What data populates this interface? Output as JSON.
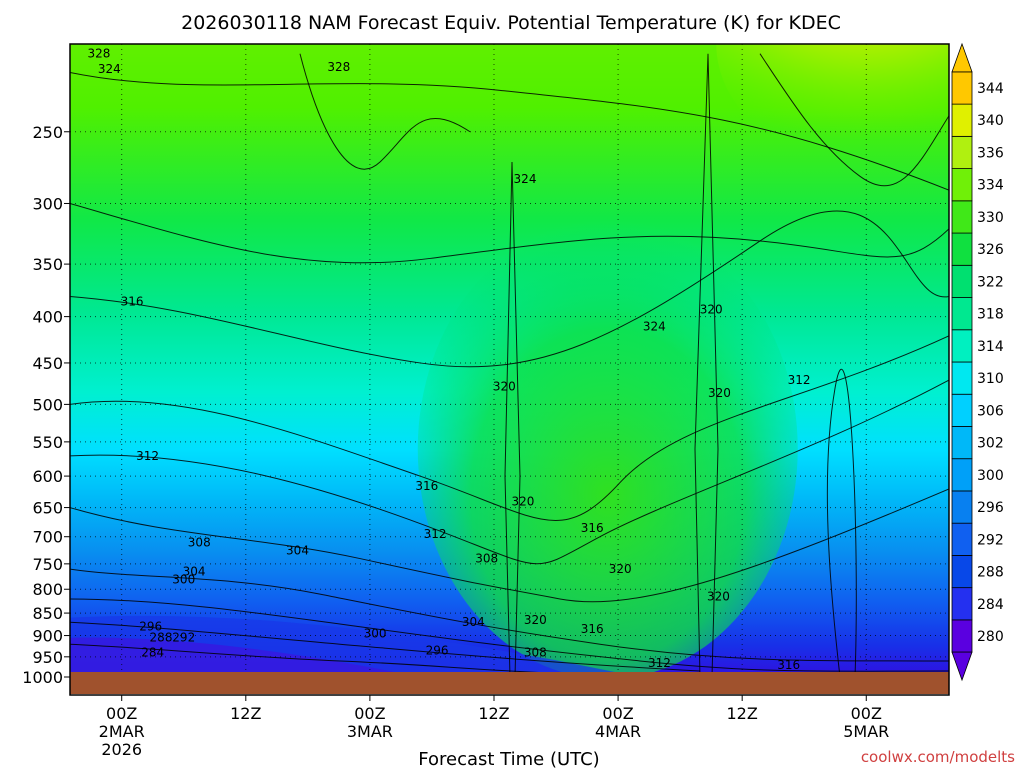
{
  "chart_data": {
    "type": "contour",
    "title": "2026030118 NAM Forecast Equiv. Potential Temperature (K) for KDEC",
    "xlabel": "Forecast Time (UTC)",
    "ylabel": "",
    "credit": "coolwx.com/modelts",
    "y_scale": "pressure (log), inverted",
    "ylim": [
      1000,
      200
    ],
    "y_ticks": [
      {
        "value": 250,
        "label": "250"
      },
      {
        "value": 300,
        "label": "300"
      },
      {
        "value": 350,
        "label": "350"
      },
      {
        "value": 400,
        "label": "400"
      },
      {
        "value": 450,
        "label": "450"
      },
      {
        "value": 500,
        "label": "500"
      },
      {
        "value": 550,
        "label": "550"
      },
      {
        "value": 600,
        "label": "600"
      },
      {
        "value": 650,
        "label": "650"
      },
      {
        "value": 700,
        "label": "700"
      },
      {
        "value": 750,
        "label": "750"
      },
      {
        "value": 800,
        "label": "800"
      },
      {
        "value": 850,
        "label": "850"
      },
      {
        "value": 900,
        "label": "900"
      },
      {
        "value": 950,
        "label": "950"
      },
      {
        "value": 1000,
        "label": "1000"
      }
    ],
    "xlim_hours_from_00Z_2MAR": [
      -5,
      80
    ],
    "x_ticks": [
      {
        "hour": 0,
        "lines": [
          "00Z",
          "2MAR",
          "2026"
        ]
      },
      {
        "hour": 12,
        "lines": [
          "12Z"
        ]
      },
      {
        "hour": 24,
        "lines": [
          "00Z",
          "3MAR"
        ]
      },
      {
        "hour": 36,
        "lines": [
          "12Z"
        ]
      },
      {
        "hour": 48,
        "lines": [
          "00Z",
          "4MAR"
        ]
      },
      {
        "hour": 60,
        "lines": [
          "12Z"
        ]
      },
      {
        "hour": 72,
        "lines": [
          "00Z",
          "5MAR"
        ]
      }
    ],
    "grid": "dotted horizontal at pressure ticks, dotted vertical at time ticks",
    "colorbar": {
      "levels": [
        280,
        284,
        288,
        292,
        296,
        300,
        302,
        306,
        310,
        314,
        318,
        322,
        326,
        330,
        334,
        336,
        340,
        344
      ],
      "labels": [
        "280",
        "284",
        "288",
        "292",
        "296",
        "300",
        "302",
        "306",
        "310",
        "314",
        "318",
        "322",
        "326",
        "330",
        "334",
        "336",
        "340",
        "344"
      ],
      "colors": [
        "#5a00e0",
        "#2430f0",
        "#0848e8",
        "#1060f0",
        "#0880f0",
        "#00a0f8",
        "#00b8f8",
        "#00d0ff",
        "#00e8f0",
        "#00f0c0",
        "#00e890",
        "#00e070",
        "#10e040",
        "#40e818",
        "#70f008",
        "#b0f010",
        "#e0f000",
        "#ffc800"
      ]
    },
    "contour_interval_K": 4,
    "contour_labels": [
      {
        "value": "328",
        "hour": -2.2,
        "p": 205
      },
      {
        "value": "324",
        "hour": -1.2,
        "p": 213
      },
      {
        "value": "328",
        "hour": 21,
        "p": 212
      },
      {
        "value": "324",
        "hour": 39,
        "p": 282
      },
      {
        "value": "316",
        "hour": 1,
        "p": 385
      },
      {
        "value": "324",
        "hour": 51.5,
        "p": 410
      },
      {
        "value": "320",
        "hour": 57,
        "p": 393
      },
      {
        "value": "320",
        "hour": 37,
        "p": 478
      },
      {
        "value": "320",
        "hour": 57.8,
        "p": 486
      },
      {
        "value": "312",
        "hour": 65.5,
        "p": 470
      },
      {
        "value": "312",
        "hour": 2.5,
        "p": 570
      },
      {
        "value": "316",
        "hour": 29.5,
        "p": 615
      },
      {
        "value": "320",
        "hour": 38.8,
        "p": 640
      },
      {
        "value": "316",
        "hour": 45.5,
        "p": 685
      },
      {
        "value": "312",
        "hour": 30.3,
        "p": 695
      },
      {
        "value": "308",
        "hour": 7.5,
        "p": 710
      },
      {
        "value": "304",
        "hour": 17,
        "p": 725
      },
      {
        "value": "308",
        "hour": 35.3,
        "p": 740
      },
      {
        "value": "304",
        "hour": 7,
        "p": 765
      },
      {
        "value": "300",
        "hour": 6,
        "p": 780
      },
      {
        "value": "320",
        "hour": 48.2,
        "p": 760
      },
      {
        "value": "320",
        "hour": 57.7,
        "p": 815
      },
      {
        "value": "296",
        "hour": 2.8,
        "p": 880
      },
      {
        "value": "304",
        "hour": 34,
        "p": 870
      },
      {
        "value": "320",
        "hour": 40,
        "p": 865
      },
      {
        "value": "316",
        "hour": 45.5,
        "p": 885
      },
      {
        "value": "300",
        "hour": 24.5,
        "p": 895
      },
      {
        "value": "288",
        "hour": 3.8,
        "p": 905
      },
      {
        "value": "292",
        "hour": 6,
        "p": 905
      },
      {
        "value": "296",
        "hour": 30.5,
        "p": 935
      },
      {
        "value": "308",
        "hour": 40,
        "p": 940
      },
      {
        "value": "284",
        "hour": 3,
        "p": 940
      },
      {
        "value": "312",
        "hour": 52,
        "p": 965
      },
      {
        "value": "316",
        "hour": 64.5,
        "p": 970
      }
    ],
    "ground_color": "#a0522d"
  }
}
